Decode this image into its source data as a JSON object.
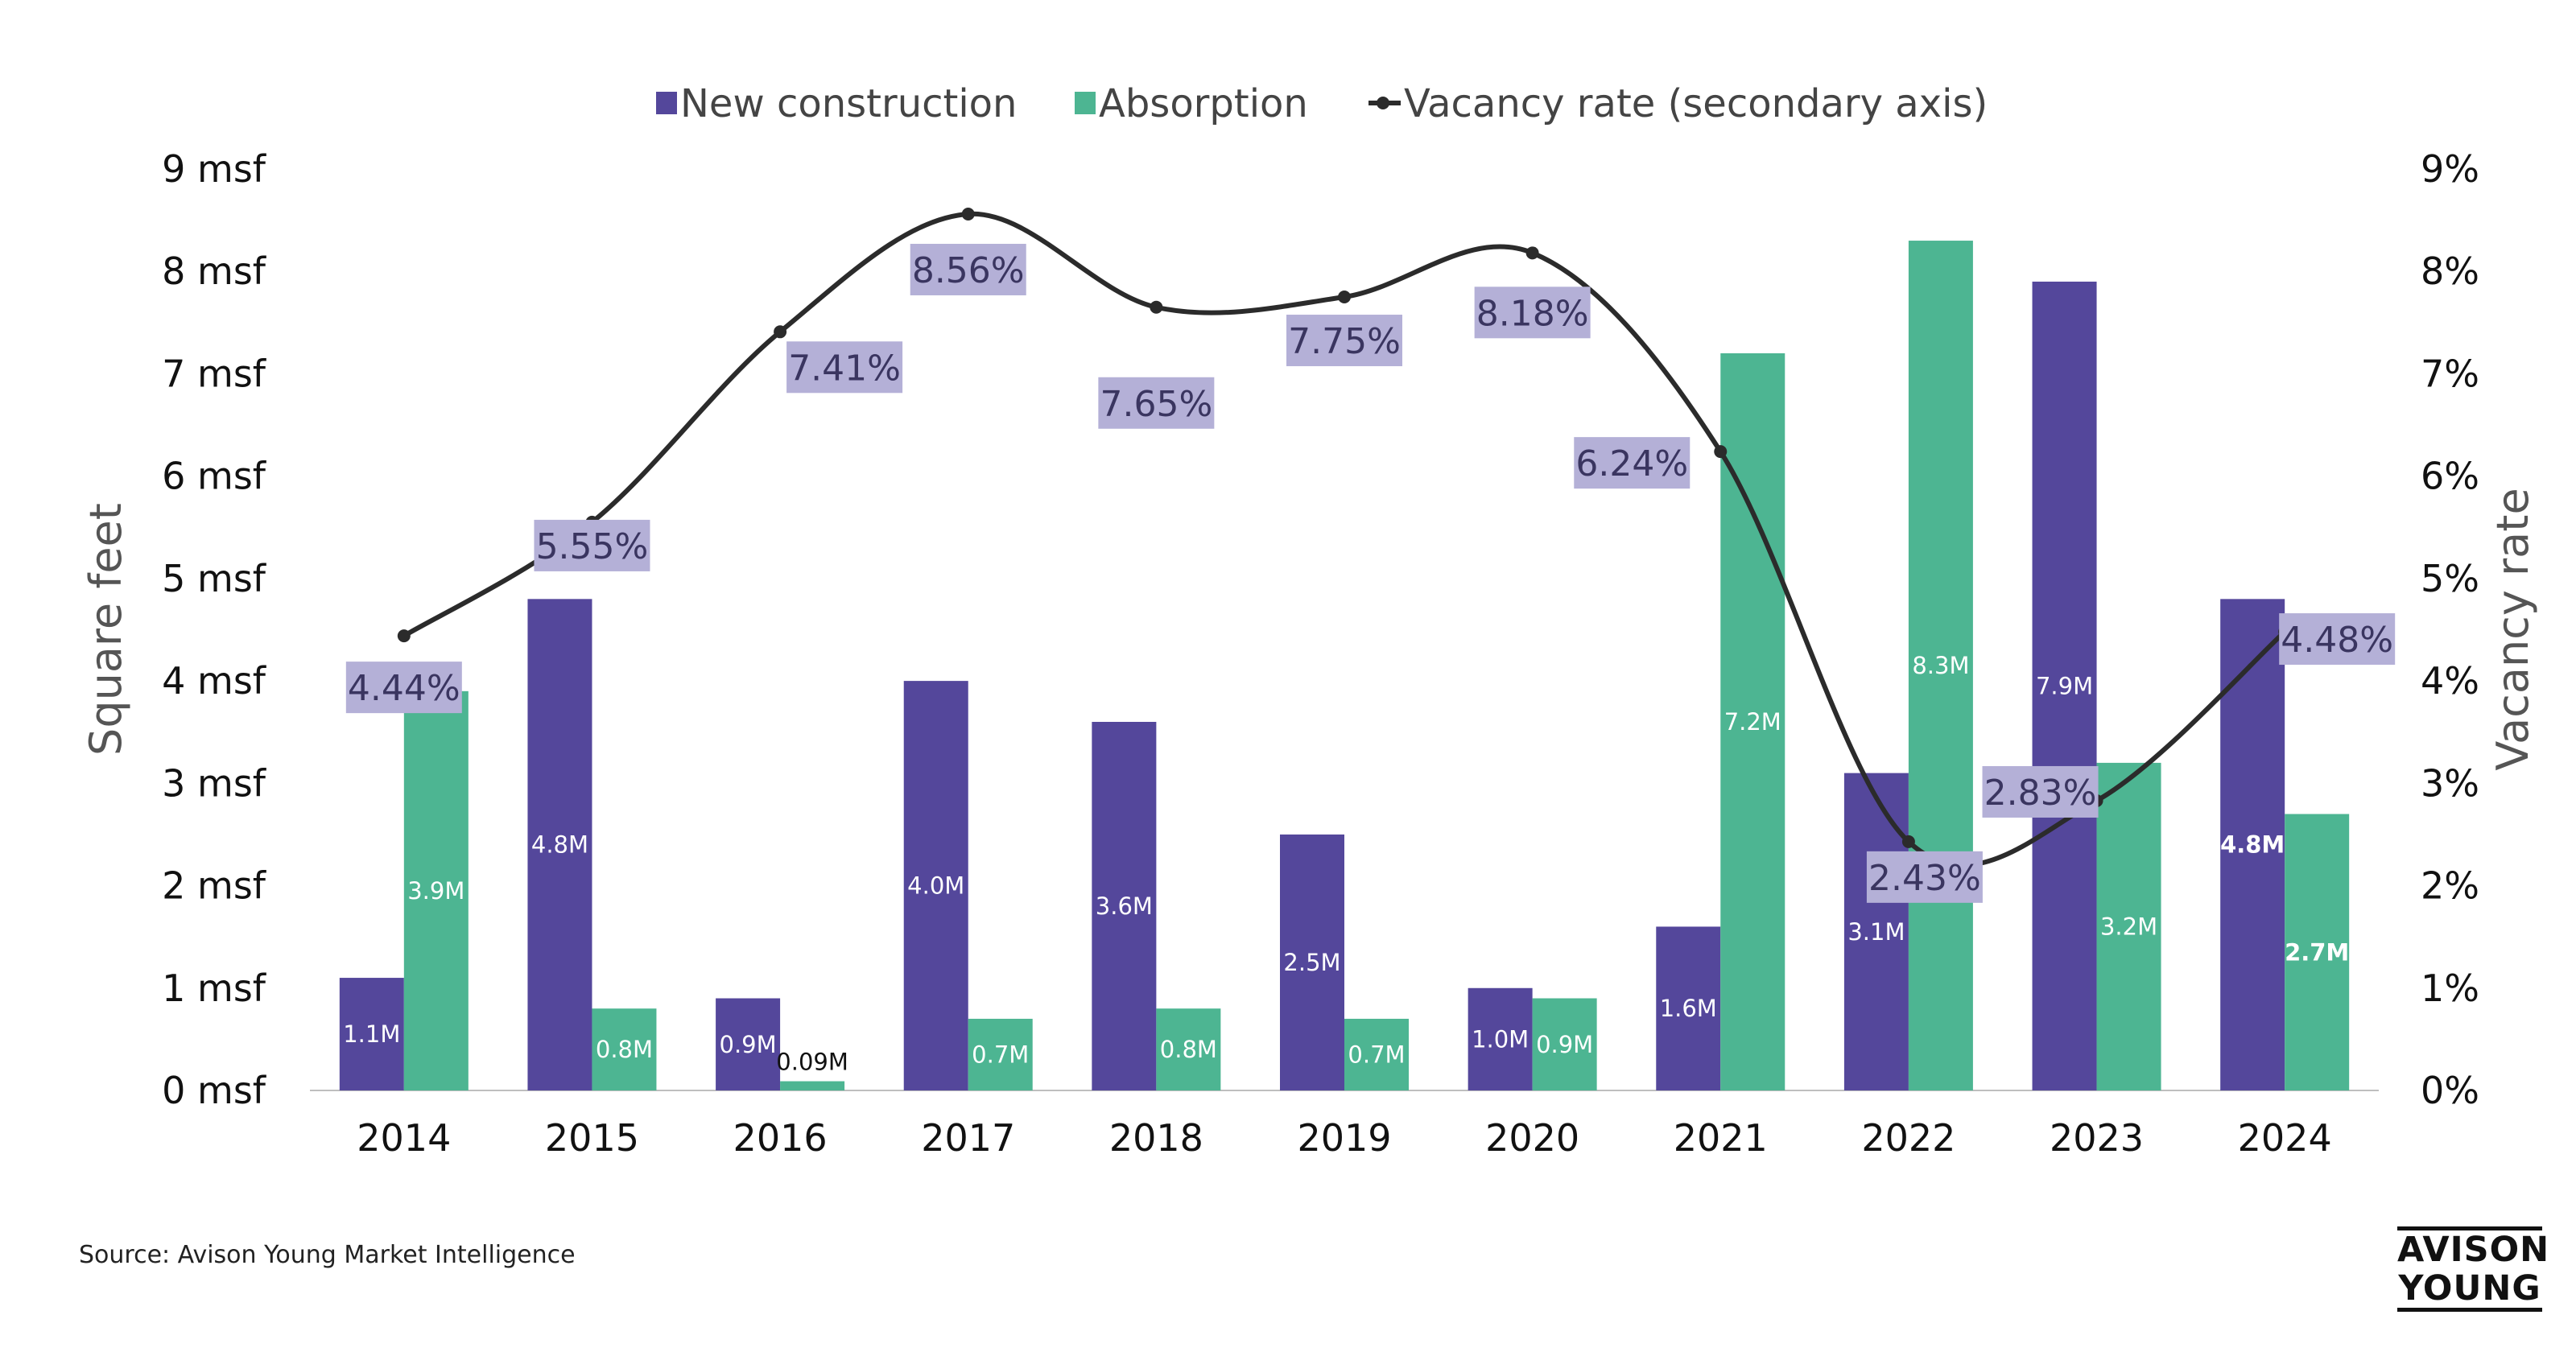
{
  "chart_data": {
    "type": "bar",
    "legend_position": "top",
    "categories": [
      "2014",
      "2015",
      "2016",
      "2017",
      "2018",
      "2019",
      "2020",
      "2021",
      "2022",
      "2023",
      "2024"
    ],
    "series": [
      {
        "name": "New construction",
        "kind": "bar",
        "axis": "primary",
        "color": "#54479b",
        "values": [
          1.1,
          4.8,
          0.9,
          4.0,
          3.6,
          2.5,
          1.0,
          1.6,
          3.1,
          7.9,
          4.8
        ],
        "labels": [
          "1.1M",
          "4.8M",
          "0.9M",
          "4.0M",
          "3.6M",
          "2.5M",
          "1.0M",
          "1.6M",
          "3.1M",
          "7.9M",
          "4.8M"
        ]
      },
      {
        "name": "Absorption",
        "kind": "bar",
        "axis": "primary",
        "color": "#4db592",
        "values": [
          3.9,
          0.8,
          0.09,
          0.7,
          0.8,
          0.7,
          0.9,
          7.2,
          8.3,
          3.2,
          2.7
        ],
        "labels": [
          "3.9M",
          "0.8M",
          "0.09M",
          "0.7M",
          "0.8M",
          "0.7M",
          "0.9M",
          "7.2M",
          "8.3M",
          "3.2M",
          "2.7M"
        ]
      },
      {
        "name": "Vacancy rate (secondary axis)",
        "kind": "line",
        "axis": "secondary",
        "color": "#2b2b2b",
        "values": [
          4.44,
          5.55,
          7.41,
          8.56,
          7.65,
          7.75,
          8.18,
          6.24,
          2.43,
          2.83,
          4.48
        ],
        "labels": [
          "4.44%",
          "5.55%",
          "7.41%",
          "8.56%",
          "7.65%",
          "7.75%",
          "8.18%",
          "6.24%",
          "2.43%",
          "2.83%",
          "4.48%"
        ]
      }
    ],
    "ylabel": "Square feet",
    "ylabel_right": "Vacancy rate",
    "ylim": [
      0,
      9
    ],
    "ylim_right": [
      0,
      9
    ],
    "y_ticks": [
      "0 msf",
      "1 msf",
      "2 msf",
      "3 msf",
      "4 msf",
      "5 msf",
      "6 msf",
      "7 msf",
      "8 msf",
      "9 msf"
    ],
    "y_ticks_right": [
      "0%",
      "1%",
      "2%",
      "3%",
      "4%",
      "5%",
      "6%",
      "7%",
      "8%",
      "9%"
    ],
    "grid": true
  },
  "source": "Source: Avison Young Market Intelligence",
  "logo": {
    "line1": "AVISON",
    "line2": "YOUNG"
  }
}
